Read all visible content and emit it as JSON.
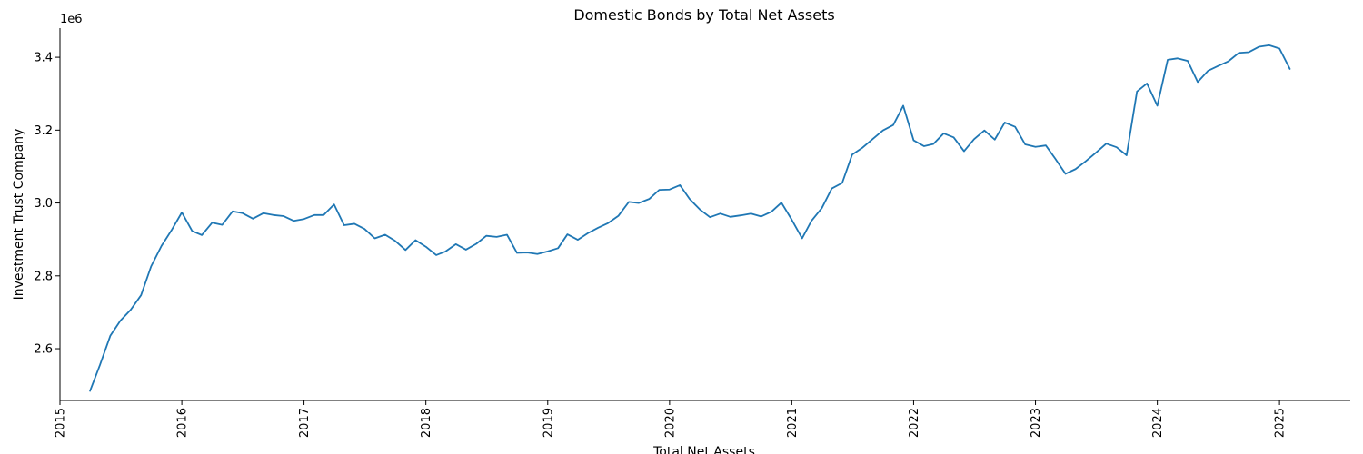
{
  "chart_data": {
    "type": "line",
    "title": "Domestic Bonds by Total Net Assets",
    "xlabel": "Total Net Assets",
    "ylabel": "Investment Trust Company",
    "y_offset_text": "1e6",
    "x_ticks": [
      "2015",
      "2016",
      "2017",
      "2018",
      "2019",
      "2020",
      "2021",
      "2022",
      "2023",
      "2024",
      "2025"
    ],
    "y_ticks": [
      "2.6",
      "2.8",
      "3.0",
      "3.2",
      "3.4"
    ],
    "x_range": [
      "2015-01-01",
      "2025-08-01"
    ],
    "y_range": [
      2.458,
      3.48
    ],
    "y_unit_multiplier": 1000000,
    "grid": false,
    "series": [
      {
        "color": "#1f77b4",
        "points": [
          [
            "2015-04-01",
            2.484
          ],
          [
            "2015-05-01",
            2.556
          ],
          [
            "2015-06-01",
            2.636
          ],
          [
            "2015-07-01",
            2.677
          ],
          [
            "2015-08-01",
            2.707
          ],
          [
            "2015-09-01",
            2.747
          ],
          [
            "2015-10-01",
            2.826
          ],
          [
            "2015-11-01",
            2.882
          ],
          [
            "2015-12-01",
            2.925
          ],
          [
            "2016-01-01",
            2.974
          ],
          [
            "2016-02-01",
            2.923
          ],
          [
            "2016-03-01",
            2.912
          ],
          [
            "2016-04-01",
            2.946
          ],
          [
            "2016-05-01",
            2.94
          ],
          [
            "2016-06-01",
            2.977
          ],
          [
            "2016-07-01",
            2.972
          ],
          [
            "2016-08-01",
            2.957
          ],
          [
            "2016-09-01",
            2.972
          ],
          [
            "2016-10-01",
            2.967
          ],
          [
            "2016-11-01",
            2.964
          ],
          [
            "2016-12-01",
            2.951
          ],
          [
            "2017-01-01",
            2.956
          ],
          [
            "2017-02-01",
            2.967
          ],
          [
            "2017-03-01",
            2.967
          ],
          [
            "2017-04-01",
            2.996
          ],
          [
            "2017-05-01",
            2.939
          ],
          [
            "2017-06-01",
            2.943
          ],
          [
            "2017-07-01",
            2.929
          ],
          [
            "2017-08-01",
            2.903
          ],
          [
            "2017-09-01",
            2.913
          ],
          [
            "2017-10-01",
            2.896
          ],
          [
            "2017-11-01",
            2.871
          ],
          [
            "2017-12-01",
            2.898
          ],
          [
            "2018-01-01",
            2.88
          ],
          [
            "2018-02-01",
            2.857
          ],
          [
            "2018-03-01",
            2.867
          ],
          [
            "2018-04-01",
            2.887
          ],
          [
            "2018-05-01",
            2.872
          ],
          [
            "2018-06-01",
            2.888
          ],
          [
            "2018-07-01",
            2.91
          ],
          [
            "2018-08-01",
            2.907
          ],
          [
            "2018-09-01",
            2.913
          ],
          [
            "2018-10-01",
            2.863
          ],
          [
            "2018-11-01",
            2.864
          ],
          [
            "2018-12-01",
            2.86
          ],
          [
            "2019-01-01",
            2.867
          ],
          [
            "2019-02-01",
            2.876
          ],
          [
            "2019-03-01",
            2.914
          ],
          [
            "2019-04-01",
            2.899
          ],
          [
            "2019-05-01",
            2.917
          ],
          [
            "2019-06-01",
            2.932
          ],
          [
            "2019-07-01",
            2.945
          ],
          [
            "2019-08-01",
            2.965
          ],
          [
            "2019-09-01",
            3.003
          ],
          [
            "2019-10-01",
            3.0
          ],
          [
            "2019-11-01",
            3.011
          ],
          [
            "2019-12-01",
            3.036
          ],
          [
            "2020-01-01",
            3.037
          ],
          [
            "2020-02-01",
            3.049
          ],
          [
            "2020-03-01",
            3.011
          ],
          [
            "2020-04-01",
            2.982
          ],
          [
            "2020-05-01",
            2.961
          ],
          [
            "2020-06-01",
            2.971
          ],
          [
            "2020-07-01",
            2.962
          ],
          [
            "2020-08-01",
            2.966
          ],
          [
            "2020-09-01",
            2.971
          ],
          [
            "2020-10-01",
            2.963
          ],
          [
            "2020-11-01",
            2.976
          ],
          [
            "2020-12-01",
            3.001
          ],
          [
            "2021-01-01",
            2.954
          ],
          [
            "2021-02-01",
            2.903
          ],
          [
            "2021-03-01",
            2.951
          ],
          [
            "2021-04-01",
            2.986
          ],
          [
            "2021-05-01",
            3.04
          ],
          [
            "2021-06-01",
            3.055
          ],
          [
            "2021-07-01",
            3.133
          ],
          [
            "2021-08-01",
            3.152
          ],
          [
            "2021-09-01",
            3.176
          ],
          [
            "2021-10-01",
            3.199
          ],
          [
            "2021-11-01",
            3.214
          ],
          [
            "2021-12-01",
            3.267
          ],
          [
            "2022-01-01",
            3.172
          ],
          [
            "2022-02-01",
            3.156
          ],
          [
            "2022-03-01",
            3.162
          ],
          [
            "2022-04-01",
            3.191
          ],
          [
            "2022-05-01",
            3.18
          ],
          [
            "2022-06-01",
            3.142
          ],
          [
            "2022-07-01",
            3.175
          ],
          [
            "2022-08-01",
            3.199
          ],
          [
            "2022-09-01",
            3.174
          ],
          [
            "2022-10-01",
            3.221
          ],
          [
            "2022-11-01",
            3.209
          ],
          [
            "2022-12-01",
            3.161
          ],
          [
            "2023-01-01",
            3.154
          ],
          [
            "2023-02-01",
            3.158
          ],
          [
            "2023-03-01",
            3.122
          ],
          [
            "2023-04-01",
            3.08
          ],
          [
            "2023-05-01",
            3.093
          ],
          [
            "2023-06-01",
            3.115
          ],
          [
            "2023-07-01",
            3.138
          ],
          [
            "2023-08-01",
            3.163
          ],
          [
            "2023-09-01",
            3.153
          ],
          [
            "2023-10-01",
            3.131
          ],
          [
            "2023-11-01",
            3.306
          ],
          [
            "2023-12-01",
            3.328
          ],
          [
            "2024-01-01",
            3.267
          ],
          [
            "2024-02-01",
            3.393
          ],
          [
            "2024-03-01",
            3.397
          ],
          [
            "2024-04-01",
            3.39
          ],
          [
            "2024-05-01",
            3.332
          ],
          [
            "2024-06-01",
            3.363
          ],
          [
            "2024-07-01",
            3.376
          ],
          [
            "2024-08-01",
            3.389
          ],
          [
            "2024-09-01",
            3.412
          ],
          [
            "2024-10-01",
            3.414
          ],
          [
            "2024-11-01",
            3.429
          ],
          [
            "2024-12-01",
            3.433
          ],
          [
            "2025-01-01",
            3.424
          ],
          [
            "2025-02-01",
            3.368
          ]
        ]
      }
    ]
  }
}
